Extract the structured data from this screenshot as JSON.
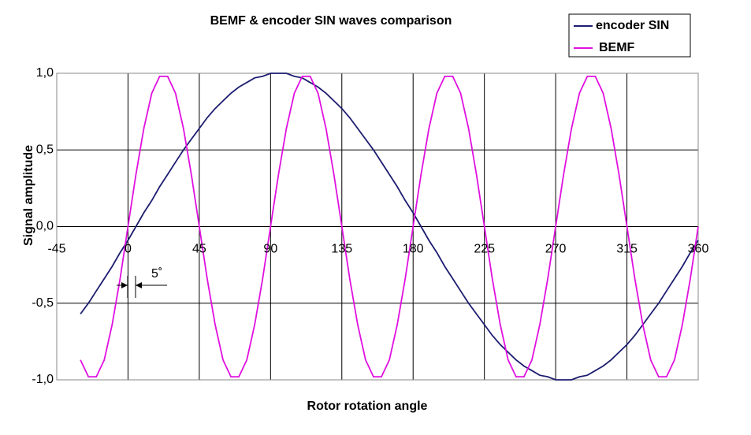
{
  "chart_data": {
    "type": "line",
    "title": "BEMF & encoder SIN waves comparison",
    "x_label": "Rotor rotation angle",
    "y_label": "Signal amplitude",
    "annotation": "5˚",
    "x": [
      -30,
      -25,
      -20,
      -15,
      -10,
      -5,
      0,
      5,
      10,
      15,
      20,
      25,
      30,
      35,
      40,
      45,
      50,
      55,
      60,
      65,
      70,
      75,
      80,
      85,
      90,
      95,
      100,
      105,
      110,
      115,
      120,
      125,
      130,
      135,
      140,
      145,
      150,
      155,
      160,
      165,
      170,
      175,
      180,
      185,
      190,
      195,
      200,
      205,
      210,
      215,
      220,
      225,
      230,
      235,
      240,
      245,
      250,
      255,
      260,
      265,
      270,
      275,
      280,
      285,
      290,
      295,
      300,
      305,
      310,
      315,
      320,
      325,
      330,
      335,
      340,
      345,
      350,
      355,
      360
    ],
    "series": [
      {
        "name": "encoder SIN",
        "color": "#1c1c70",
        "values": [
          -0.57,
          -0.5,
          -0.42,
          -0.34,
          -0.26,
          -0.17,
          -0.09,
          0,
          0.09,
          0.17,
          0.26,
          0.34,
          0.42,
          0.5,
          0.57,
          0.64,
          0.71,
          0.77,
          0.82,
          0.87,
          0.91,
          0.94,
          0.97,
          0.98,
          1,
          1,
          1,
          0.98,
          0.97,
          0.94,
          0.91,
          0.87,
          0.82,
          0.77,
          0.71,
          0.64,
          0.57,
          0.5,
          0.42,
          0.34,
          0.26,
          0.17,
          0.09,
          0,
          -0.09,
          -0.17,
          -0.26,
          -0.34,
          -0.42,
          -0.5,
          -0.57,
          -0.64,
          -0.71,
          -0.77,
          -0.82,
          -0.87,
          -0.91,
          -0.94,
          -0.97,
          -0.98,
          -1,
          -1,
          -1,
          -0.98,
          -0.97,
          -0.94,
          -0.91,
          -0.87,
          -0.82,
          -0.77,
          -0.71,
          -0.64,
          -0.57,
          -0.5,
          -0.42,
          -0.34,
          -0.26,
          -0.17,
          -0.09
        ]
      },
      {
        "name": "BEMF",
        "color": "#e010e0",
        "values": [
          -0.87,
          -0.98,
          -0.98,
          -0.87,
          -0.64,
          -0.34,
          0,
          0.34,
          0.64,
          0.87,
          0.98,
          0.98,
          0.87,
          0.64,
          0.34,
          0,
          -0.34,
          -0.64,
          -0.87,
          -0.98,
          -0.98,
          -0.87,
          -0.64,
          -0.34,
          0,
          0.34,
          0.64,
          0.87,
          0.98,
          0.98,
          0.87,
          0.64,
          0.34,
          0,
          -0.34,
          -0.64,
          -0.87,
          -0.98,
          -0.98,
          -0.87,
          -0.64,
          -0.34,
          0,
          0.34,
          0.64,
          0.87,
          0.98,
          0.98,
          0.87,
          0.64,
          0.34,
          0,
          -0.34,
          -0.64,
          -0.87,
          -0.98,
          -0.98,
          -0.87,
          -0.64,
          -0.34,
          0,
          0.34,
          0.64,
          0.87,
          0.98,
          0.98,
          0.87,
          0.64,
          0.34,
          0,
          -0.34,
          -0.64,
          -0.87,
          -0.98,
          -0.98,
          -0.87,
          -0.64,
          -0.34,
          0
        ]
      }
    ],
    "xlim": [
      -45,
      360
    ],
    "xticks": [
      -45,
      0,
      45,
      90,
      135,
      180,
      225,
      270,
      315,
      360
    ],
    "ylim": [
      -1,
      1
    ],
    "yticks": [
      {
        "value": -1,
        "label": "-1,0"
      },
      {
        "value": -0.5,
        "label": "-0,5"
      },
      {
        "value": 0,
        "label": "0,0"
      },
      {
        "value": 0.5,
        "label": "0,5"
      },
      {
        "value": 1,
        "label": "1,0"
      }
    ],
    "grid": true,
    "legend": "top-right"
  }
}
